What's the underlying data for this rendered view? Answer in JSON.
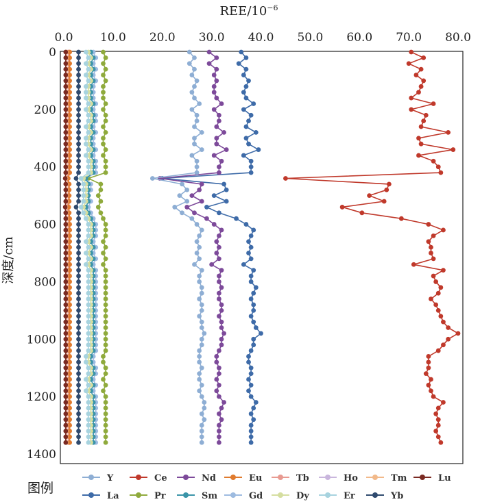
{
  "chart_data": {
    "type": "line",
    "orientation": "depth-profile",
    "xlabel": "REE/10",
    "xlabel_sup": "−6",
    "ylabel": "深度/cm",
    "legend_title": "图例",
    "xlim": [
      0,
      80
    ],
    "ylim": [
      1400,
      0
    ],
    "x_ticks": [
      "0.0",
      "10.0",
      "20.0",
      "30.0",
      "40.0",
      "50.0",
      "60.0",
      "70.0",
      "80.0"
    ],
    "y_ticks": [
      "0",
      "200",
      "400",
      "600",
      "800",
      "1000",
      "1200",
      "1400"
    ],
    "x_axis_position": "top",
    "legend_position": "bottom",
    "grid": false,
    "depths": [
      0,
      20,
      40,
      60,
      80,
      100,
      120,
      140,
      160,
      180,
      200,
      220,
      240,
      260,
      280,
      300,
      320,
      340,
      360,
      380,
      400,
      420,
      440,
      460,
      480,
      500,
      520,
      540,
      560,
      580,
      600,
      620,
      640,
      660,
      680,
      700,
      720,
      740,
      760,
      780,
      800,
      820,
      840,
      860,
      880,
      900,
      920,
      940,
      960,
      980,
      1000,
      1020,
      1040,
      1060,
      1080,
      1100,
      1120,
      1140,
      1160,
      1180,
      1200,
      1220,
      1240,
      1260,
      1280,
      1300,
      1320,
      1340,
      1360
    ],
    "series": [
      {
        "name": "Ce",
        "color": "#c0392b",
        "values": [
          70.5,
          73.0,
          70.0,
          72.5,
          71.5,
          73.0,
          72.5,
          72.0,
          70.5,
          75.0,
          70.5,
          73.5,
          73.0,
          72.5,
          78.0,
          72.0,
          72.5,
          79.0,
          72.0,
          75.0,
          76.0,
          76.5,
          45.0,
          66.0,
          65.5,
          62.0,
          65.0,
          56.5,
          60.5,
          68.5,
          74.0,
          77.0,
          75.0,
          74.0,
          74.5,
          74.5,
          75.0,
          71.0,
          77.0,
          75.0,
          75.5,
          76.5,
          76.0,
          74.5,
          75.5,
          76.0,
          76.5,
          77.0,
          78.0,
          80.0,
          78.0,
          77.0,
          76.0,
          74.0,
          74.0,
          74.0,
          73.5,
          74.5,
          74.0,
          74.5,
          75.0,
          77.0,
          76.0,
          75.5,
          76.0,
          76.0,
          75.5,
          76.0,
          76.5
        ]
      },
      {
        "name": "La",
        "color": "#3e6ba8",
        "values": [
          36.0,
          37.0,
          35.5,
          37.0,
          36.5,
          37.5,
          37.0,
          36.5,
          37.0,
          38.5,
          36.5,
          38.0,
          37.5,
          37.0,
          39.0,
          37.0,
          37.5,
          39.5,
          36.5,
          38.0,
          38.0,
          38.0,
          20.0,
          32.5,
          33.0,
          30.5,
          33.0,
          29.0,
          31.5,
          35.0,
          37.0,
          38.5,
          38.0,
          37.5,
          38.0,
          37.5,
          38.0,
          36.5,
          38.5,
          38.0,
          38.0,
          39.0,
          38.5,
          38.0,
          38.5,
          38.5,
          38.0,
          38.5,
          39.0,
          40.0,
          38.5,
          38.5,
          38.0,
          37.5,
          37.5,
          38.0,
          38.0,
          37.5,
          38.0,
          37.5,
          38.0,
          39.0,
          38.5,
          38.0,
          38.5,
          38.0,
          38.0,
          38.0,
          38.0
        ]
      },
      {
        "name": "Nd",
        "color": "#7d4a9a",
        "values": [
          29.5,
          31.0,
          29.5,
          31.0,
          30.5,
          31.0,
          30.5,
          30.5,
          31.0,
          32.0,
          30.5,
          31.5,
          31.5,
          31.0,
          32.5,
          31.0,
          31.0,
          33.0,
          30.5,
          32.0,
          31.5,
          31.5,
          19.5,
          28.0,
          27.5,
          26.0,
          28.0,
          25.0,
          26.5,
          29.0,
          30.5,
          32.0,
          31.5,
          31.0,
          31.5,
          31.0,
          31.5,
          30.0,
          32.0,
          31.5,
          31.5,
          32.0,
          31.5,
          31.5,
          32.0,
          32.0,
          31.5,
          32.0,
          32.0,
          32.5,
          32.0,
          32.0,
          31.5,
          31.0,
          31.0,
          31.5,
          31.5,
          31.0,
          31.5,
          31.0,
          31.5,
          32.5,
          32.0,
          31.5,
          32.0,
          31.5,
          31.5,
          31.5,
          31.5
        ]
      },
      {
        "name": "Y",
        "color": "#8eaed4",
        "values": [
          25.5,
          26.5,
          25.5,
          26.5,
          26.0,
          27.0,
          26.5,
          26.0,
          26.5,
          27.5,
          26.0,
          27.0,
          27.0,
          26.5,
          28.0,
          26.5,
          26.5,
          28.0,
          26.0,
          27.0,
          27.0,
          27.0,
          18.0,
          24.0,
          25.0,
          23.5,
          25.0,
          22.5,
          24.0,
          26.0,
          27.0,
          28.0,
          27.5,
          27.0,
          27.5,
          27.0,
          27.5,
          26.5,
          28.0,
          27.5,
          27.5,
          28.0,
          28.0,
          27.5,
          28.0,
          28.0,
          27.5,
          28.0,
          28.0,
          28.5,
          28.0,
          28.0,
          27.5,
          27.5,
          27.5,
          28.0,
          27.5,
          27.5,
          28.0,
          27.5,
          28.0,
          28.5,
          28.5,
          28.0,
          28.5,
          28.0,
          28.0,
          28.0,
          28.0
        ]
      },
      {
        "name": "Pr",
        "color": "#8faa3c",
        "values": [
          8.0,
          8.5,
          8.0,
          8.5,
          8.0,
          8.5,
          8.0,
          8.0,
          8.0,
          8.5,
          8.0,
          8.5,
          8.5,
          8.0,
          8.5,
          8.0,
          8.0,
          8.5,
          8.0,
          8.5,
          8.5,
          8.5,
          5.0,
          7.5,
          7.5,
          7.0,
          7.5,
          7.0,
          7.5,
          8.0,
          8.5,
          8.5,
          8.5,
          8.0,
          8.5,
          8.0,
          8.5,
          8.0,
          8.5,
          8.5,
          8.5,
          8.5,
          8.5,
          8.5,
          8.5,
          8.5,
          8.5,
          8.5,
          8.5,
          8.5,
          8.5,
          8.5,
          8.5,
          8.0,
          8.0,
          8.5,
          8.5,
          8.0,
          8.5,
          8.0,
          8.5,
          8.5,
          8.5,
          8.5,
          8.5,
          8.5,
          8.5,
          8.5,
          8.5
        ]
      },
      {
        "name": "Gd",
        "color": "#9dbbe0",
        "values": [
          6.0,
          6.5,
          6.0,
          6.5,
          6.0,
          6.5,
          6.0,
          6.0,
          6.0,
          6.5,
          6.0,
          6.5,
          6.5,
          6.0,
          6.5,
          6.0,
          6.0,
          6.5,
          6.0,
          6.5,
          6.5,
          6.5,
          4.5,
          5.5,
          5.5,
          5.0,
          5.5,
          5.0,
          5.5,
          6.0,
          6.5,
          6.5,
          6.5,
          6.0,
          6.5,
          6.0,
          6.5,
          6.0,
          6.5,
          6.5,
          6.5,
          6.5,
          6.5,
          6.5,
          6.5,
          6.5,
          6.5,
          6.5,
          6.5,
          6.5,
          6.5,
          6.5,
          6.5,
          6.0,
          6.0,
          6.5,
          6.5,
          6.0,
          6.5,
          6.0,
          6.5,
          6.5,
          6.5,
          6.5,
          6.5,
          6.5,
          6.5,
          6.5,
          6.5
        ]
      },
      {
        "name": "Sm",
        "color": "#3a94a8",
        "values": [
          5.5,
          6.0,
          5.5,
          6.0,
          5.5,
          6.0,
          5.5,
          5.5,
          5.5,
          6.0,
          5.5,
          6.0,
          6.0,
          5.5,
          6.0,
          5.5,
          5.5,
          6.0,
          5.5,
          6.0,
          6.0,
          6.0,
          4.5,
          5.0,
          5.0,
          5.0,
          5.0,
          4.5,
          5.0,
          5.5,
          6.0,
          6.0,
          6.0,
          5.5,
          6.0,
          5.5,
          6.0,
          5.5,
          6.0,
          6.0,
          6.0,
          6.0,
          6.0,
          6.0,
          6.0,
          6.0,
          6.0,
          6.0,
          6.0,
          6.0,
          6.0,
          6.0,
          6.0,
          5.5,
          5.5,
          6.0,
          6.0,
          5.5,
          6.0,
          5.5,
          6.0,
          6.0,
          6.0,
          6.0,
          6.0,
          6.0,
          6.0,
          6.0,
          6.0
        ]
      },
      {
        "name": "Dy",
        "color": "#d5dea0",
        "values": [
          5.0,
          5.5,
          5.0,
          5.5,
          5.0,
          5.5,
          5.0,
          5.0,
          5.0,
          5.5,
          5.0,
          5.5,
          5.5,
          5.0,
          5.5,
          5.0,
          5.0,
          5.5,
          5.0,
          5.5,
          5.5,
          5.5,
          4.0,
          4.5,
          4.5,
          4.5,
          4.5,
          4.0,
          4.5,
          5.0,
          5.5,
          5.5,
          5.5,
          5.0,
          5.5,
          5.0,
          5.5,
          5.0,
          5.5,
          5.5,
          5.5,
          5.5,
          5.5,
          5.5,
          5.5,
          5.5,
          5.5,
          5.5,
          5.5,
          5.5,
          5.5,
          5.5,
          5.5,
          5.0,
          5.0,
          5.5,
          5.5,
          5.0,
          5.5,
          5.0,
          5.5,
          5.5,
          5.5,
          5.5,
          5.5,
          5.5,
          5.5,
          5.5,
          5.5
        ]
      },
      {
        "name": "Er",
        "color": "#a7d3df",
        "values": [
          4.5,
          5.0,
          4.5,
          5.0,
          4.5,
          5.0,
          4.5,
          4.5,
          4.5,
          5.0,
          4.5,
          5.0,
          5.0,
          4.5,
          5.0,
          4.5,
          4.5,
          5.0,
          4.5,
          5.0,
          5.0,
          5.0,
          3.5,
          4.0,
          4.0,
          4.0,
          4.0,
          3.5,
          4.0,
          4.5,
          5.0,
          5.0,
          5.0,
          4.5,
          5.0,
          4.5,
          5.0,
          4.5,
          5.0,
          5.0,
          5.0,
          5.0,
          5.0,
          5.0,
          5.0,
          5.0,
          5.0,
          5.0,
          5.0,
          5.0,
          5.0,
          5.0,
          5.0,
          4.5,
          4.5,
          5.0,
          5.0,
          4.5,
          5.0,
          4.5,
          5.0,
          5.0,
          5.0,
          5.0,
          5.0,
          5.0,
          5.0,
          5.0,
          5.0
        ]
      },
      {
        "name": "Yb",
        "color": "#2f4a6e",
        "values": [
          3.0,
          3.0,
          3.0,
          3.0,
          3.0,
          3.0,
          3.0,
          3.0,
          3.0,
          3.0,
          3.0,
          3.0,
          3.0,
          3.0,
          3.0,
          3.0,
          3.0,
          3.0,
          3.0,
          3.0,
          3.0,
          3.0,
          2.5,
          3.0,
          3.0,
          3.0,
          3.0,
          2.5,
          3.0,
          3.0,
          3.0,
          3.0,
          3.0,
          3.0,
          3.0,
          3.0,
          3.0,
          3.0,
          3.0,
          3.0,
          3.0,
          3.0,
          3.0,
          3.0,
          3.0,
          3.0,
          3.0,
          3.0,
          3.0,
          3.0,
          3.0,
          3.0,
          3.0,
          3.0,
          3.0,
          3.0,
          3.0,
          3.0,
          3.0,
          3.0,
          3.0,
          3.0,
          3.0,
          3.0,
          3.0,
          3.0,
          3.0,
          3.0,
          3.0
        ]
      },
      {
        "name": "Ho",
        "color": "#c9b6dd",
        "values": [
          1.0,
          1.0,
          1.0,
          1.0,
          1.0,
          1.0,
          1.0,
          1.0,
          1.0,
          1.0,
          1.0,
          1.0,
          1.0,
          1.0,
          1.0,
          1.0,
          1.0,
          1.0,
          1.0,
          1.0,
          1.0,
          1.0,
          0.8,
          1.0,
          1.0,
          1.0,
          1.0,
          0.8,
          1.0,
          1.0,
          1.0,
          1.0,
          1.0,
          1.0,
          1.0,
          1.0,
          1.0,
          1.0,
          1.0,
          1.0,
          1.0,
          1.0,
          1.0,
          1.0,
          1.0,
          1.0,
          1.0,
          1.0,
          1.0,
          1.0,
          1.0,
          1.0,
          1.0,
          1.0,
          1.0,
          1.0,
          1.0,
          1.0,
          1.0,
          1.0,
          1.0,
          1.0,
          1.0,
          1.0,
          1.0,
          1.0,
          1.0,
          1.0,
          1.0
        ]
      },
      {
        "name": "Tb",
        "color": "#e89a91",
        "values": [
          0.9,
          0.9,
          0.9,
          0.9,
          0.9,
          0.9,
          0.9,
          0.9,
          0.9,
          0.9,
          0.9,
          0.9,
          0.9,
          0.9,
          0.9,
          0.9,
          0.9,
          0.9,
          0.9,
          0.9,
          0.9,
          0.9,
          0.7,
          0.9,
          0.9,
          0.9,
          0.9,
          0.7,
          0.9,
          0.9,
          0.9,
          0.9,
          0.9,
          0.9,
          0.9,
          0.9,
          0.9,
          0.9,
          0.9,
          0.9,
          0.9,
          0.9,
          0.9,
          0.9,
          0.9,
          0.9,
          0.9,
          0.9,
          0.9,
          0.9,
          0.9,
          0.9,
          0.9,
          0.9,
          0.9,
          0.9,
          0.9,
          0.9,
          0.9,
          0.9,
          0.9,
          0.9,
          0.9,
          0.9,
          0.9,
          0.9,
          0.9,
          0.9,
          0.9
        ]
      },
      {
        "name": "Eu",
        "color": "#e07b2e",
        "values": [
          1.2,
          1.2,
          1.2,
          1.2,
          1.2,
          1.2,
          1.2,
          1.2,
          1.2,
          1.2,
          1.2,
          1.2,
          1.2,
          1.2,
          1.2,
          1.2,
          1.2,
          1.2,
          1.2,
          1.2,
          1.2,
          1.2,
          0.9,
          1.1,
          1.1,
          1.1,
          1.1,
          1.0,
          1.1,
          1.2,
          1.2,
          1.2,
          1.2,
          1.2,
          1.2,
          1.2,
          1.2,
          1.2,
          1.2,
          1.2,
          1.2,
          1.2,
          1.2,
          1.2,
          1.2,
          1.2,
          1.2,
          1.2,
          1.2,
          1.2,
          1.2,
          1.2,
          1.2,
          1.2,
          1.2,
          1.2,
          1.2,
          1.2,
          1.2,
          1.2,
          1.2,
          1.2,
          1.2,
          1.2,
          1.2,
          1.2,
          1.2,
          1.2,
          1.2
        ]
      },
      {
        "name": "Tm",
        "color": "#f2b98a",
        "values": [
          0.5,
          0.5,
          0.5,
          0.5,
          0.5,
          0.5,
          0.5,
          0.5,
          0.5,
          0.5,
          0.5,
          0.5,
          0.5,
          0.5,
          0.5,
          0.5,
          0.5,
          0.5,
          0.5,
          0.5,
          0.5,
          0.5,
          0.4,
          0.5,
          0.5,
          0.5,
          0.5,
          0.4,
          0.5,
          0.5,
          0.5,
          0.5,
          0.5,
          0.5,
          0.5,
          0.5,
          0.5,
          0.5,
          0.5,
          0.5,
          0.5,
          0.5,
          0.5,
          0.5,
          0.5,
          0.5,
          0.5,
          0.5,
          0.5,
          0.5,
          0.5,
          0.5,
          0.5,
          0.5,
          0.5,
          0.5,
          0.5,
          0.5,
          0.5,
          0.5,
          0.5,
          0.5,
          0.5,
          0.5,
          0.5,
          0.5,
          0.5,
          0.5,
          0.5
        ]
      },
      {
        "name": "Lu",
        "color": "#7a2a22",
        "values": [
          0.4,
          0.4,
          0.4,
          0.4,
          0.4,
          0.4,
          0.4,
          0.4,
          0.4,
          0.4,
          0.4,
          0.4,
          0.4,
          0.4,
          0.4,
          0.4,
          0.4,
          0.4,
          0.4,
          0.4,
          0.4,
          0.4,
          0.3,
          0.4,
          0.4,
          0.4,
          0.4,
          0.3,
          0.4,
          0.4,
          0.4,
          0.4,
          0.4,
          0.4,
          0.4,
          0.4,
          0.4,
          0.4,
          0.4,
          0.4,
          0.4,
          0.4,
          0.4,
          0.4,
          0.4,
          0.4,
          0.4,
          0.4,
          0.4,
          0.4,
          0.4,
          0.4,
          0.4,
          0.4,
          0.4,
          0.4,
          0.4,
          0.4,
          0.4,
          0.4,
          0.4,
          0.4,
          0.4,
          0.4,
          0.4,
          0.4,
          0.4,
          0.4,
          0.4
        ]
      }
    ],
    "legend_rows": [
      [
        "Y",
        "Ce",
        "Nd",
        "Eu",
        "Tb",
        "Ho",
        "Tm",
        "Lu"
      ],
      [
        "La",
        "Pr",
        "Sm",
        "Gd",
        "Dy",
        "Er",
        "Yb"
      ]
    ]
  }
}
